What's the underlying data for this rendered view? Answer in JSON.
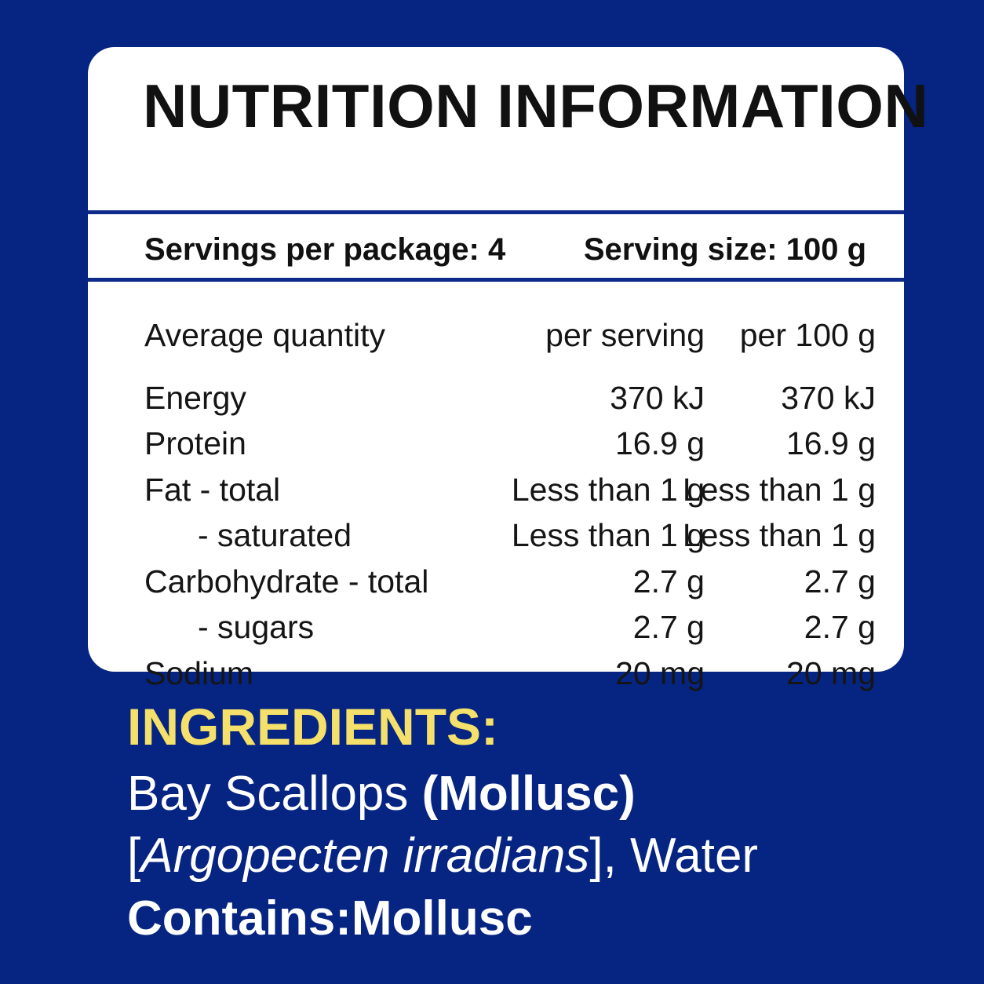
{
  "colors": {
    "background": "#062481",
    "panel": "#ffffff",
    "rule": "#0e2a8a",
    "heading_accent": "#f4e06a",
    "text_dark": "#111111",
    "text_light": "#ffffff"
  },
  "panel": {
    "title": "NUTRITION INFORMATION",
    "servings_per_package": "Servings per package: 4",
    "serving_size": "Serving size: 100 g"
  },
  "table": {
    "headers": {
      "name": "Average quantity",
      "per_serving": "per serving",
      "per_100g": "per 100 g"
    },
    "rows": [
      {
        "name": "Energy",
        "per_serving": "370 kJ",
        "per_100g": "370 kJ"
      },
      {
        "name": "Protein",
        "per_serving": "16.9 g",
        "per_100g": "16.9 g"
      },
      {
        "name": "Fat - total",
        "per_serving": "Less than 1 g",
        "per_100g": "Less than 1 g"
      },
      {
        "name": "- saturated",
        "per_serving": "Less than 1 g",
        "per_100g": "Less than 1 g"
      },
      {
        "name": "Carbohydrate - total",
        "per_serving": "2.7 g",
        "per_100g": "2.7 g"
      },
      {
        "name": "- sugars",
        "per_serving": "2.7 g",
        "per_100g": "2.7 g"
      },
      {
        "name": "Sodium",
        "per_serving": "20 mg",
        "per_100g": "20 mg"
      }
    ]
  },
  "ingredients": {
    "title": "INGREDIENTS:",
    "line1_plain": "Bay Scallops ",
    "line1_bold": "(Mollusc)",
    "line2_bracket_open": "[",
    "line2_italic": "Argopecten irradians",
    "line2_rest": "], Water",
    "line3": "Contains:Mollusc"
  }
}
